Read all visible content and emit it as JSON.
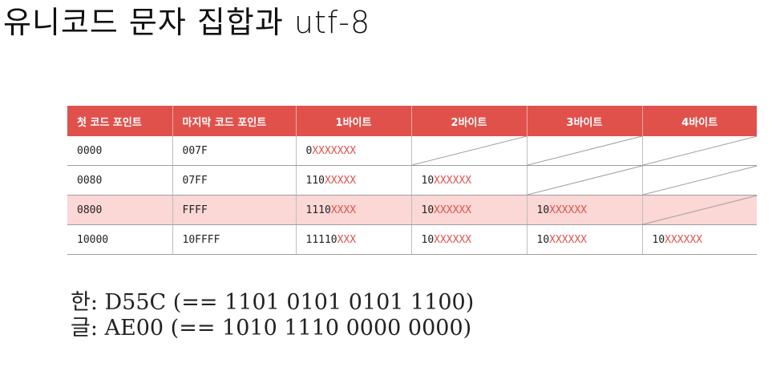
{
  "title": "유니코드 문자 집합과 utf-8",
  "table": {
    "headers": [
      "첫 코드 포인트",
      "마지막 코드 포인트",
      "1바이트",
      "2바이트",
      "3바이트",
      "4바이트"
    ],
    "rows": [
      {
        "first": "0000",
        "last": "007F",
        "b1_prefix": "0",
        "b1_x": "XXXXXXX",
        "b2_prefix": "",
        "b2_x": "",
        "b3_prefix": "",
        "b3_x": "",
        "b4_prefix": "",
        "b4_x": ""
      },
      {
        "first": "0080",
        "last": "07FF",
        "b1_prefix": "110",
        "b1_x": "XXXXX",
        "b2_prefix": "10",
        "b2_x": "XXXXXX",
        "b3_prefix": "",
        "b3_x": "",
        "b4_prefix": "",
        "b4_x": ""
      },
      {
        "first": "0800",
        "last": "FFFF",
        "b1_prefix": "1110",
        "b1_x": "XXXX",
        "b2_prefix": "10",
        "b2_x": "XXXXXX",
        "b3_prefix": "10",
        "b3_x": "XXXXXX",
        "b4_prefix": "",
        "b4_x": ""
      },
      {
        "first": "10000",
        "last": "10FFFF",
        "b1_prefix": "11110",
        "b1_x": "XXX",
        "b2_prefix": "10",
        "b2_x": "XXXXXX",
        "b3_prefix": "10",
        "b3_x": "XXXXXX",
        "b4_prefix": "10",
        "b4_x": "XXXXXX"
      }
    ]
  },
  "notes": [
    "한: D55C (== 1101 0101 0101 1100)",
    "글: AE00 (== 1010 1110 0000 0000)"
  ],
  "colors": {
    "header_bg": "#e0514c",
    "highlight_row": "#fbd7d5",
    "x_text": "#e0514c"
  }
}
